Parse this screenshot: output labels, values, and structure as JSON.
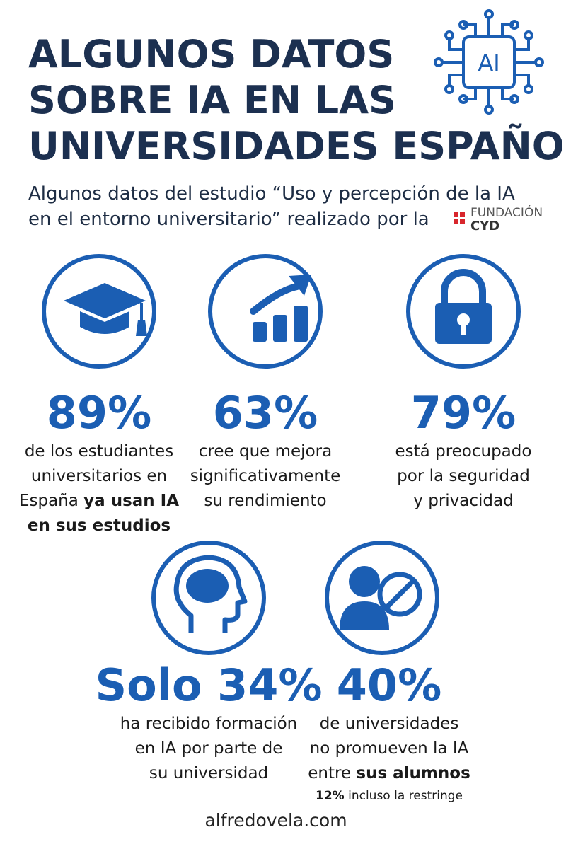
{
  "header": {
    "title": [
      "ALGUNOS DATOS",
      "SOBRE IA EN LAS",
      "UNIVERSIDADES ESPAÑOLAS"
    ],
    "chip_label": "AI",
    "subtitle": [
      "Algunos datos del estudio “Uso y percepción de la IA",
      "en el entorno universitario” realizado por la"
    ],
    "logo": [
      "FUNDACIÓN",
      "CYD"
    ]
  },
  "stats": [
    {
      "value": "89%",
      "lines": [
        [
          {
            "text": "de los estudiantes",
            "bold": false
          }
        ],
        [
          {
            "text": "universitarios en",
            "bold": false
          }
        ],
        [
          {
            "text": "España ",
            "bold": false
          },
          {
            "text": "ya usan IA",
            "bold": true
          }
        ],
        [
          {
            "text": "en sus estudios",
            "bold": true
          }
        ]
      ]
    },
    {
      "value": "63%",
      "lines": [
        [
          {
            "text": "cree que mejora",
            "bold": false
          }
        ],
        [
          {
            "text": "significativamente",
            "bold": false
          }
        ],
        [
          {
            "text": "su rendimiento",
            "bold": false
          }
        ]
      ]
    },
    {
      "value": "79%",
      "lines": [
        [
          {
            "text": "está preocupado",
            "bold": false
          }
        ],
        [
          {
            "text": "por la seguridad",
            "bold": false
          }
        ],
        [
          {
            "text": "y privacidad",
            "bold": false
          }
        ]
      ]
    },
    {
      "value": "Solo 34%",
      "lines": [
        [
          {
            "text": "ha recibido formación",
            "bold": false
          }
        ],
        [
          {
            "text": "en IA por parte de",
            "bold": false
          }
        ],
        [
          {
            "text": "su universidad",
            "bold": false
          }
        ]
      ]
    },
    {
      "value": "40%",
      "lines": [
        [
          {
            "text": "de universidades",
            "bold": false
          }
        ],
        [
          {
            "text": "no promueven la IA",
            "bold": false
          }
        ],
        [
          {
            "text": "entre ",
            "bold": false
          },
          {
            "text": "sus alumnos",
            "bold": true
          }
        ]
      ],
      "note": [
        {
          "text": "12%",
          "bold": true
        },
        {
          "text": " incluso la restringe",
          "bold": false
        }
      ]
    }
  ],
  "footer": "alfredovela.com"
}
